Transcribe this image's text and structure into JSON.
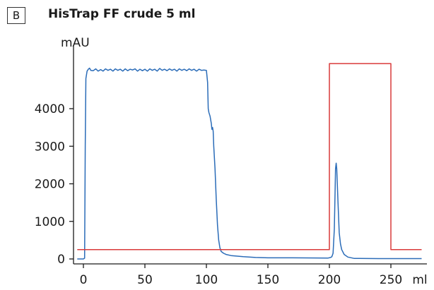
{
  "panel_label": "B",
  "chart_data": {
    "type": "line",
    "title": "HisTrap FF crude 5 ml",
    "ylabel": "mAU",
    "xlabel": "ml",
    "xlim": [
      -8,
      275
    ],
    "ylim": [
      -80,
      5500
    ],
    "x_ticks": [
      0,
      50,
      100,
      150,
      200,
      250
    ],
    "y_ticks": [
      0,
      1000,
      2000,
      3000,
      4000
    ],
    "grid": false,
    "series": [
      {
        "color": "#2b6cb8",
        "points": [
          [
            -5,
            0
          ],
          [
            0,
            0
          ],
          [
            1,
            20
          ],
          [
            1.5,
            3000
          ],
          [
            2,
            4800
          ],
          [
            3,
            5000
          ],
          [
            4,
            5050
          ],
          [
            5,
            5080
          ],
          [
            6,
            5020
          ],
          [
            8,
            5010
          ],
          [
            10,
            5060
          ],
          [
            12,
            5000
          ],
          [
            14,
            5040
          ],
          [
            16,
            5000
          ],
          [
            18,
            5060
          ],
          [
            20,
            5020
          ],
          [
            22,
            5050
          ],
          [
            24,
            5000
          ],
          [
            26,
            5060
          ],
          [
            28,
            5020
          ],
          [
            30,
            5050
          ],
          [
            32,
            5000
          ],
          [
            34,
            5060
          ],
          [
            36,
            5010
          ],
          [
            38,
            5050
          ],
          [
            40,
            5030
          ],
          [
            42,
            5060
          ],
          [
            44,
            5000
          ],
          [
            46,
            5050
          ],
          [
            48,
            5010
          ],
          [
            50,
            5050
          ],
          [
            52,
            5000
          ],
          [
            54,
            5060
          ],
          [
            56,
            5020
          ],
          [
            58,
            5050
          ],
          [
            60,
            5000
          ],
          [
            62,
            5070
          ],
          [
            64,
            5020
          ],
          [
            66,
            5050
          ],
          [
            68,
            5010
          ],
          [
            70,
            5060
          ],
          [
            72,
            5020
          ],
          [
            74,
            5050
          ],
          [
            76,
            5000
          ],
          [
            78,
            5060
          ],
          [
            80,
            5020
          ],
          [
            82,
            5050
          ],
          [
            84,
            5010
          ],
          [
            86,
            5060
          ],
          [
            88,
            5020
          ],
          [
            90,
            5050
          ],
          [
            92,
            5000
          ],
          [
            94,
            5050
          ],
          [
            96,
            5020
          ],
          [
            98,
            5030
          ],
          [
            100,
            5020
          ],
          [
            101,
            4700
          ],
          [
            101.5,
            4000
          ],
          [
            102,
            3900
          ],
          [
            103,
            3800
          ],
          [
            104,
            3600
          ],
          [
            104.5,
            3450
          ],
          [
            105,
            3500
          ],
          [
            105.5,
            3400
          ],
          [
            106,
            3000
          ],
          [
            107,
            2400
          ],
          [
            108,
            1600
          ],
          [
            109,
            900
          ],
          [
            110,
            500
          ],
          [
            111,
            300
          ],
          [
            112,
            200
          ],
          [
            114,
            150
          ],
          [
            116,
            120
          ],
          [
            120,
            90
          ],
          [
            130,
            60
          ],
          [
            140,
            40
          ],
          [
            150,
            30
          ],
          [
            170,
            30
          ],
          [
            199,
            25
          ],
          [
            201,
            40
          ],
          [
            202,
            60
          ],
          [
            203,
            150
          ],
          [
            204,
            800
          ],
          [
            205,
            2400
          ],
          [
            205.5,
            2550
          ],
          [
            206,
            2400
          ],
          [
            207,
            1500
          ],
          [
            208,
            700
          ],
          [
            209,
            400
          ],
          [
            210,
            250
          ],
          [
            212,
            120
          ],
          [
            215,
            50
          ],
          [
            220,
            15
          ],
          [
            240,
            10
          ],
          [
            275,
            10
          ]
        ]
      },
      {
        "color": "#d93a3a",
        "points": [
          [
            -5,
            250
          ],
          [
            200,
            250
          ],
          [
            200,
            5200
          ],
          [
            250,
            5200
          ],
          [
            250,
            250
          ],
          [
            275,
            250
          ]
        ]
      }
    ]
  }
}
